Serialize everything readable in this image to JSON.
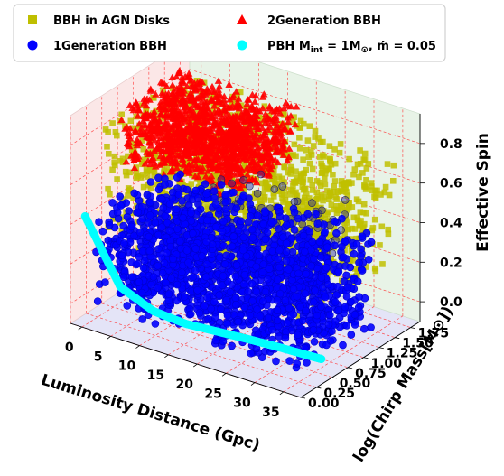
{
  "chart_data": {
    "type": "scatter",
    "projection": "3d",
    "xlabel": "Luminosity Distance (Gpc)",
    "ylabel": "log(Chirp Mass[M⊙])",
    "zlabel": "Effective Spin",
    "xlim": [
      -2,
      38
    ],
    "ylim": [
      0,
      1.9
    ],
    "zlim": [
      -0.1,
      0.95
    ],
    "xticks": [
      "0",
      "5",
      "10",
      "15",
      "20",
      "25",
      "30",
      "35"
    ],
    "yticks": [
      "0.00",
      "0.25",
      "0.50",
      "0.75",
      "1.00",
      "1.25",
      "1.50",
      "1.75"
    ],
    "zticks": [
      "0.0",
      "0.2",
      "0.4",
      "0.6",
      "0.8"
    ],
    "grid": true,
    "grid_style": "red dashed",
    "legend_position": "top",
    "series": [
      {
        "name": "BBH in AGN Disks",
        "marker": "square",
        "color": "#bfbf00",
        "x_range": [
          0,
          36
        ],
        "y_range": [
          0.3,
          1.75
        ],
        "z_range": [
          0.25,
          0.85
        ]
      },
      {
        "name": "1Generation BBH",
        "marker": "circle",
        "color": "#0000ff",
        "x_range": [
          0,
          36
        ],
        "y_range": [
          0.2,
          1.4
        ],
        "z_range": [
          -0.05,
          0.45
        ]
      },
      {
        "name": "2Generation BBH",
        "marker": "triangle",
        "color": "#ff0000",
        "x_range": [
          0,
          20
        ],
        "y_range": [
          0.6,
          1.6
        ],
        "z_range": [
          0.6,
          0.9
        ]
      },
      {
        "name": "PBH M_int = 1M⊙, ṁ = 0.05",
        "marker": "circle",
        "color": "#00ffff",
        "curve": {
          "x": [
            0,
            5,
            10,
            15,
            20,
            25,
            30,
            35,
            37
          ],
          "y": [
            0.05,
            0.15,
            0.22,
            0.28,
            0.32,
            0.36,
            0.39,
            0.41,
            0.42
          ],
          "z": [
            0.45,
            0.12,
            0.03,
            0.0,
            0.0,
            0.0,
            0.0,
            0.0,
            0.0
          ]
        }
      }
    ]
  },
  "legend": {
    "items": [
      {
        "label": "BBH in AGN Disks",
        "marker": "square",
        "color": "#bfbf00"
      },
      {
        "label": "2Generation BBH",
        "marker": "triangle",
        "color": "#ff0000"
      },
      {
        "label": "1Generation BBH",
        "marker": "circle",
        "color": "#0000ff"
      },
      {
        "label_main": "PBH M",
        "label_sub": "int",
        "label_rest": " = 1M",
        "label_sun": "⊙",
        "label_end": ", ṁ = 0.05",
        "marker": "circle",
        "color": "#00ffff"
      }
    ]
  }
}
